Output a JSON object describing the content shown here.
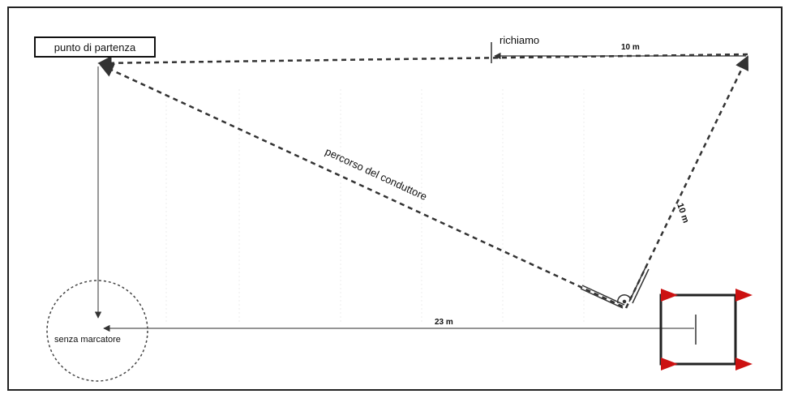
{
  "diagram": {
    "labels": {
      "start": "punto di partenza",
      "recall": "richiamo",
      "top_distance": "10 m",
      "diagonal_distance": "10 m",
      "handler_path": "percorso del conduttore",
      "bottom_distance": "23 m",
      "no_marker": "senza marcatore"
    },
    "colors": {
      "line": "#333333",
      "flag": "#cc1111",
      "frame": "#222222"
    }
  }
}
